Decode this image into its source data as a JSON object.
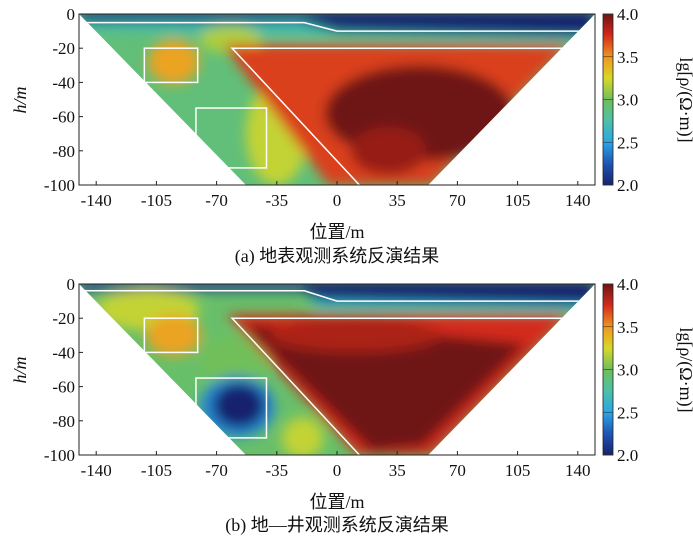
{
  "colormap": {
    "stops": [
      {
        "v": 2.0,
        "c": "#16246e"
      },
      {
        "v": 2.25,
        "c": "#1f55b5"
      },
      {
        "v": 2.5,
        "c": "#2aa6e6"
      },
      {
        "v": 2.75,
        "c": "#4cc0a8"
      },
      {
        "v": 3.0,
        "c": "#6fbf5a"
      },
      {
        "v": 3.25,
        "c": "#d8d82a"
      },
      {
        "v": 3.5,
        "c": "#f0961e"
      },
      {
        "v": 3.75,
        "c": "#d42a1c"
      },
      {
        "v": 4.0,
        "c": "#6e1414"
      }
    ]
  },
  "chart_data": [
    {
      "type": "heatmap",
      "caption": "(a) 地表观测系统反演结果",
      "xlabel": "位置/m",
      "ylabel": "h/m",
      "xlim": [
        -150,
        150
      ],
      "ylim": [
        -100,
        0
      ],
      "xticks": [
        "-140",
        "-105",
        "-70",
        "-35",
        "0",
        "35",
        "70",
        "105",
        "140"
      ],
      "xtick_values": [
        -140,
        -105,
        -70,
        -35,
        0,
        35,
        70,
        105,
        140
      ],
      "yticks": [
        "0",
        "-20",
        "-40",
        "-60",
        "-80",
        "-100"
      ],
      "ytick_values": [
        0,
        -20,
        -40,
        -60,
        -80,
        -100
      ],
      "colorbar": {
        "label": "lg[ρ/(Ω·m)]",
        "range": [
          2.0,
          4.0
        ],
        "ticks": [
          "4.0",
          "3.5",
          "3.0",
          "2.5",
          "2.0"
        ],
        "tick_values": [
          4.0,
          3.5,
          3.0,
          2.5,
          2.0
        ]
      },
      "domain": [
        [
          -150,
          0
        ],
        [
          150,
          0
        ],
        [
          53,
          -100
        ],
        [
          -53,
          -100
        ]
      ],
      "background_value": 2.9,
      "regions": [
        {
          "shape": "polygon",
          "points": [
            [
              -150,
              2
            ],
            [
              -19,
              2
            ],
            [
              -19,
              -4.5
            ],
            [
              -150,
              -4.5
            ]
          ],
          "value": 2.05
        },
        {
          "shape": "polygon",
          "points": [
            [
              -19,
              2
            ],
            [
              150,
              2
            ],
            [
              150,
              -13
            ],
            [
              -10,
              -12
            ],
            [
              -19,
              -5
            ]
          ],
          "value": 2.0
        },
        {
          "shape": "polygon",
          "points": [
            [
              -150,
              -5
            ],
            [
              -19,
              -5
            ],
            [
              0,
              -10
            ],
            [
              150,
              -13
            ],
            [
              150,
              -16
            ],
            [
              -150,
              -9
            ]
          ],
          "value": 2.7
        },
        {
          "shape": "ellipse",
          "cx": -62,
          "cy": -15,
          "rx": 18,
          "ry": 8,
          "value": 3.15
        },
        {
          "shape": "ellipse",
          "cx": -95,
          "cy": -28,
          "rx": 15,
          "ry": 13,
          "value": 3.45
        },
        {
          "shape": "ellipse",
          "cx": -35,
          "cy": -70,
          "rx": 18,
          "ry": 30,
          "value": 3.2
        },
        {
          "shape": "polygon",
          "points": [
            [
              -66,
              -18
            ],
            [
              135,
              -18
            ],
            [
              55,
              -100
            ],
            [
              -5,
              -100
            ]
          ],
          "value": 3.7
        },
        {
          "shape": "ellipse",
          "cx": 48,
          "cy": -58,
          "rx": 55,
          "ry": 28,
          "value": 4.0
        },
        {
          "shape": "ellipse",
          "cx": 30,
          "cy": -80,
          "rx": 22,
          "ry": 14,
          "value": 3.9
        }
      ],
      "annotations": {
        "surface_line": [
          [
            -148,
            -5
          ],
          [
            -19,
            -5
          ],
          [
            0,
            -10
          ],
          [
            143,
            -10
          ]
        ],
        "fault_line": [
          [
            13,
            -100
          ],
          [
            -61,
            -20
          ],
          [
            131,
            -20
          ]
        ],
        "boxes": [
          {
            "x0": -112,
            "x1": -81,
            "y0": -20,
            "y1": -40
          },
          {
            "x0": -82,
            "x1": -41,
            "y0": -55,
            "y1": -90
          }
        ]
      }
    },
    {
      "type": "heatmap",
      "caption": "(b) 地—井观测系统反演结果",
      "xlabel": "位置/m",
      "ylabel": "h/m",
      "xlim": [
        -150,
        150
      ],
      "ylim": [
        -100,
        0
      ],
      "xticks": [
        "-140",
        "-105",
        "-70",
        "-35",
        "0",
        "35",
        "70",
        "105",
        "140"
      ],
      "xtick_values": [
        -140,
        -105,
        -70,
        -35,
        0,
        35,
        70,
        105,
        140
      ],
      "yticks": [
        "0",
        "-20",
        "-40",
        "-60",
        "-80",
        "-100"
      ],
      "ytick_values": [
        0,
        -20,
        -40,
        -60,
        -80,
        -100
      ],
      "colorbar": {
        "label": "lg[ρ/(Ω·m)]",
        "range": [
          2.0,
          4.0
        ],
        "ticks": [
          "4.0",
          "3.5",
          "3.0",
          "2.5",
          "2.0"
        ],
        "tick_values": [
          4.0,
          3.5,
          3.0,
          2.5,
          2.0
        ]
      },
      "domain": [
        [
          -150,
          0
        ],
        [
          150,
          0
        ],
        [
          53,
          -100
        ],
        [
          -53,
          -100
        ]
      ],
      "background_value": 2.95,
      "regions": [
        {
          "shape": "polygon",
          "points": [
            [
              -150,
              2
            ],
            [
              -19,
              2
            ],
            [
              -19,
              -4
            ],
            [
              -150,
              -4
            ]
          ],
          "value": 2.1
        },
        {
          "shape": "polygon",
          "points": [
            [
              -19,
              2
            ],
            [
              150,
              2
            ],
            [
              150,
              -12
            ],
            [
              -5,
              -11
            ],
            [
              -19,
              -5
            ]
          ],
          "value": 2.0
        },
        {
          "shape": "polygon",
          "points": [
            [
              -19,
              -9
            ],
            [
              150,
              -12
            ],
            [
              150,
              -15
            ],
            [
              -10,
              -14
            ]
          ],
          "value": 2.6
        },
        {
          "shape": "ellipse",
          "cx": -110,
          "cy": -15,
          "rx": 30,
          "ry": 12,
          "value": 3.2
        },
        {
          "shape": "ellipse",
          "cx": -95,
          "cy": -30,
          "rx": 16,
          "ry": 12,
          "value": 3.45
        },
        {
          "shape": "ellipse",
          "cx": -60,
          "cy": -45,
          "rx": 20,
          "ry": 15,
          "value": 3.0
        },
        {
          "shape": "ellipse",
          "cx": -58,
          "cy": -72,
          "rx": 22,
          "ry": 18,
          "value": 2.4
        },
        {
          "shape": "ellipse",
          "cx": -57,
          "cy": -71,
          "rx": 15,
          "ry": 13,
          "value": 2.0
        },
        {
          "shape": "ellipse",
          "cx": -20,
          "cy": -90,
          "rx": 12,
          "ry": 12,
          "value": 3.2
        },
        {
          "shape": "polygon",
          "points": [
            [
              -64,
              -18
            ],
            [
              135,
              -18
            ],
            [
              55,
              -100
            ],
            [
              12,
              -100
            ]
          ],
          "value": 3.75
        },
        {
          "shape": "polygon",
          "points": [
            [
              -55,
              -24
            ],
            [
              60,
              -30
            ],
            [
              110,
              -35
            ],
            [
              50,
              -95
            ],
            [
              20,
              -98
            ]
          ],
          "value": 4.0
        },
        {
          "shape": "ellipse",
          "cx": 10,
          "cy": -30,
          "rx": 50,
          "ry": 10,
          "value": 3.85
        }
      ],
      "annotations": {
        "surface_line": [
          [
            -148,
            -4
          ],
          [
            -19,
            -4
          ],
          [
            0,
            -10
          ],
          [
            143,
            -10
          ]
        ],
        "fault_line": [
          [
            13,
            -100
          ],
          [
            -61,
            -20
          ],
          [
            131,
            -20
          ]
        ],
        "boxes": [
          {
            "x0": -112,
            "x1": -81,
            "y0": -20,
            "y1": -40
          },
          {
            "x0": -82,
            "x1": -41,
            "y0": -55,
            "y1": -90
          }
        ]
      }
    }
  ]
}
